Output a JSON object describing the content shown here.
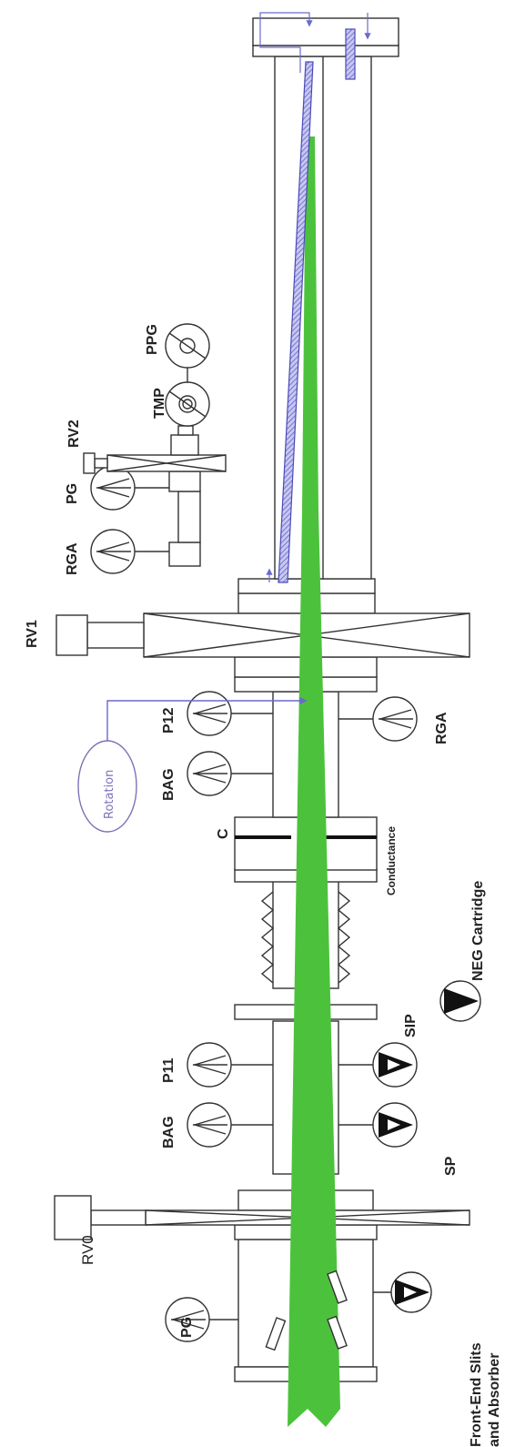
{
  "labels": {
    "pg_bottom": "PG",
    "rv0": "RV0",
    "front_end_line1": "Front-End Slits",
    "front_end_line2": "and Absorber",
    "bag_lower": "BAG",
    "p11": "P11",
    "sp": "SP",
    "sip": "SIP",
    "neg": "NEG Cartridge",
    "c": "C",
    "conductance": "Conductance",
    "bag_upper": "BAG",
    "p12": "P12",
    "rotation": "Rotation",
    "rga_right": "RGA",
    "rv1": "RV1",
    "rga_left": "RGA",
    "pg_top": "PG",
    "rv2": "RV2",
    "tmp": "TMP",
    "ppg": "PPG"
  },
  "colors": {
    "beam": "#4cc23c",
    "mirror": "#6a6ad0",
    "line": "#333333",
    "annotation": "#7a74b8"
  }
}
